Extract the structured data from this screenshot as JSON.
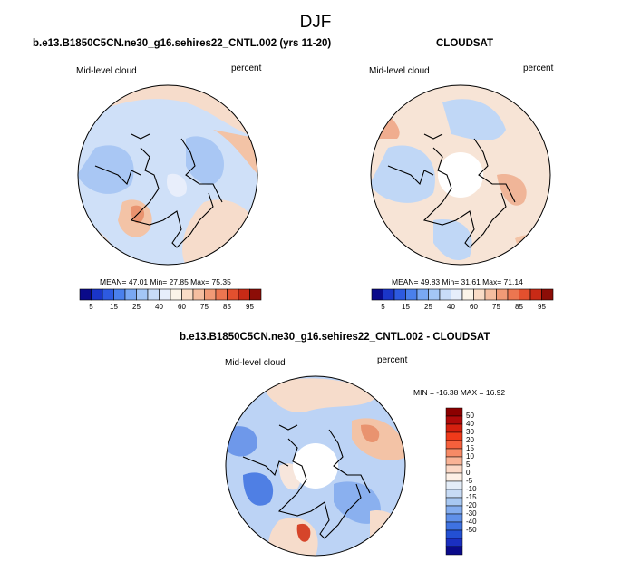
{
  "title": "DJF",
  "panel1": {
    "subtitle": "b.e13.B1850C5CN.ne30_g16.sehires22_CNTL.002 (yrs 11-20)",
    "left_label": "Mid-level cloud",
    "right_label": "percent",
    "stats": "MEAN=  47.01  Min=  27.85  Max=  75.35"
  },
  "panel2": {
    "subtitle": "CLOUDSAT",
    "left_label": "Mid-level cloud",
    "right_label": "percent",
    "stats": "MEAN=  49.83  Min=  31.61  Max=  71.14"
  },
  "panel3": {
    "subtitle": "b.e13.B1850C5CN.ne30_g16.sehires22_CNTL.002 - CLOUDSAT",
    "left_label": "Mid-level cloud",
    "right_label": "percent",
    "stats": "MIN = -16.38 MAX =  16.92"
  },
  "colorbar_h": {
    "colors": [
      "#0a0a8a",
      "#1a35c8",
      "#2d5ae0",
      "#4a80ec",
      "#79a8f3",
      "#a3c6f6",
      "#c8dcf8",
      "#e6eefb",
      "#fbf4e8",
      "#f9dcc6",
      "#f5bea0",
      "#f19a76",
      "#ec7650",
      "#e3502e",
      "#c82a16",
      "#8c0d07"
    ],
    "ticks": [
      "5",
      "15",
      "25",
      "40",
      "60",
      "75",
      "85",
      "95"
    ]
  },
  "colorbar_v": {
    "colors": [
      "#8c0000",
      "#b00a0a",
      "#d6200f",
      "#ef3a1a",
      "#f5603c",
      "#f78a66",
      "#f9b396",
      "#fbd8c6",
      "#fdf0e6",
      "#e4edf8",
      "#c7dbf5",
      "#a8c8f2",
      "#84adef",
      "#6090e9",
      "#3f72e1",
      "#2350d3",
      "#1a2fc0",
      "#0a0a8a"
    ],
    "labels": [
      "50",
      "40",
      "30",
      "20",
      "15",
      "10",
      "5",
      "0",
      "-5",
      "-10",
      "-15",
      "-20",
      "-30",
      "-40",
      "-50"
    ]
  }
}
